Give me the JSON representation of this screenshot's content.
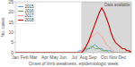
{
  "chart_data": {
    "type": "line",
    "xlabel": "Onset of limb weakness, epidemiologic week",
    "ylabel": "No. cases",
    "x": [
      1,
      2,
      3,
      4,
      5,
      6,
      7,
      8,
      9,
      10,
      11,
      12,
      13,
      14,
      15,
      16,
      17,
      18,
      19,
      20,
      21,
      22,
      23,
      24,
      25,
      26,
      27,
      28,
      29,
      30,
      31,
      32,
      33,
      34,
      35,
      36,
      37,
      38,
      39,
      40,
      41,
      42,
      43,
      44,
      45,
      46,
      47,
      48,
      49,
      50,
      51,
      52
    ],
    "xlim": [
      1,
      52
    ],
    "xticks": [
      {
        "value": 1,
        "label": "Jan"
      },
      {
        "value": 5,
        "label": "Feb"
      },
      {
        "value": 9,
        "label": "Mar"
      },
      {
        "value": 14,
        "label": "Apr"
      },
      {
        "value": 18,
        "label": "May"
      },
      {
        "value": 22,
        "label": "Jun"
      },
      {
        "value": 27,
        "label": "Jul"
      },
      {
        "value": 31,
        "label": "Aug"
      },
      {
        "value": 35,
        "label": "Sep"
      },
      {
        "value": 40,
        "label": "Oct"
      },
      {
        "value": 44,
        "label": "Nov"
      },
      {
        "value": 48,
        "label": "Dec"
      }
    ],
    "ylim": [
      0,
      25
    ],
    "yticks": [
      0,
      5,
      10,
      15,
      20,
      25
    ],
    "grid": false,
    "legend": "upper left",
    "shaded_span": {
      "start": 30,
      "end": 52,
      "color": "#d8d8d8"
    },
    "annotation": "Data available",
    "series": [
      {
        "name": "2015",
        "color": "#5b9bd5",
        "values": [
          0,
          0,
          0,
          0,
          0,
          0,
          0,
          0,
          0,
          0,
          0,
          0,
          0,
          0,
          0,
          0,
          0,
          0,
          0,
          0,
          0,
          0,
          0,
          0,
          0,
          0,
          0,
          0,
          1,
          1,
          2,
          1,
          2,
          2,
          3,
          4,
          3,
          2,
          2,
          1,
          1,
          1,
          1,
          0,
          0,
          0,
          0,
          0,
          0,
          0,
          0,
          0
        ]
      },
      {
        "name": "2016",
        "color": "#70ad47",
        "values": [
          0,
          0,
          0,
          0,
          0,
          0,
          0,
          0,
          0,
          0,
          0,
          0,
          0,
          0,
          0,
          0,
          0,
          0,
          0,
          0,
          0,
          0,
          0,
          0,
          0,
          0,
          0,
          0,
          0,
          0,
          1,
          2,
          2,
          3,
          3,
          2,
          2,
          2,
          1,
          1,
          1,
          0,
          0,
          0,
          0,
          0,
          0,
          0,
          0,
          0,
          0,
          0
        ]
      },
      {
        "name": "2017",
        "color": "#ff9999",
        "values": [
          0,
          0,
          0,
          0,
          0,
          0,
          0,
          0,
          0,
          0,
          0,
          0,
          0,
          0,
          0,
          0,
          0,
          0,
          0,
          0,
          0,
          0,
          0,
          0,
          0,
          0,
          0,
          0,
          0,
          1,
          2,
          3,
          5,
          7,
          8,
          9,
          10,
          9,
          8,
          6,
          4,
          3,
          2,
          1,
          0,
          0,
          0,
          0,
          0,
          0,
          0,
          0
        ]
      },
      {
        "name": "2018",
        "color": "#c00000",
        "values": [
          0,
          0,
          0,
          0,
          0,
          0,
          0,
          0,
          0,
          0,
          0,
          0,
          0,
          0,
          0,
          0,
          0,
          0,
          0,
          0,
          0,
          0,
          0,
          0,
          0,
          0,
          0,
          0,
          0,
          0,
          1,
          3,
          5,
          8,
          11,
          14,
          17,
          20,
          22,
          20,
          17,
          14,
          10,
          7,
          5,
          4,
          3,
          2,
          2,
          1,
          1,
          0
        ]
      }
    ]
  }
}
